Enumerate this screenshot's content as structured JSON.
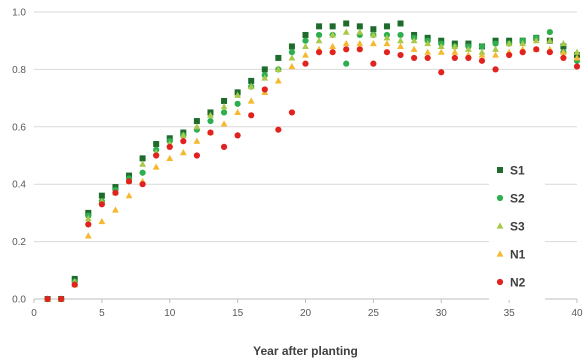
{
  "chart_data": {
    "type": "scatter",
    "title": "",
    "xlabel": "Year after planting",
    "ylabel": "",
    "xlim": [
      0,
      40
    ],
    "ylim": [
      0,
      1.0
    ],
    "xticks": [
      0,
      5,
      10,
      15,
      20,
      25,
      30,
      35,
      40
    ],
    "yticks": [
      "0.0",
      "0.2",
      "0.4",
      "0.6",
      "0.8",
      "1.0"
    ],
    "grid": "horizontal",
    "legend_placement": "right",
    "series": [
      {
        "name": "S1",
        "marker": "square",
        "color": "#1e6b2c",
        "x": [
          1,
          2,
          3,
          4,
          5,
          6,
          7,
          8,
          9,
          10,
          11,
          12,
          13,
          14,
          15,
          16,
          17,
          18,
          19,
          20,
          21,
          22,
          23,
          24,
          25,
          26,
          27,
          28,
          29,
          30,
          31,
          32,
          33,
          34,
          35,
          36,
          37,
          38,
          39,
          40
        ],
        "y": [
          0,
          0,
          0.07,
          0.3,
          0.36,
          0.39,
          0.43,
          0.49,
          0.54,
          0.56,
          0.58,
          0.62,
          0.65,
          0.69,
          0.72,
          0.76,
          0.8,
          0.84,
          0.88,
          0.92,
          0.95,
          0.95,
          0.96,
          0.95,
          0.94,
          0.95,
          0.96,
          0.92,
          0.91,
          0.9,
          0.89,
          0.89,
          0.88,
          0.9,
          0.9,
          0.9,
          0.91,
          0.9,
          0.88,
          0.85
        ]
      },
      {
        "name": "S2",
        "marker": "circle",
        "color": "#2eae4f",
        "x": [
          1,
          2,
          3,
          4,
          5,
          6,
          7,
          8,
          9,
          10,
          11,
          12,
          13,
          14,
          15,
          16,
          17,
          18,
          19,
          20,
          21,
          22,
          23,
          24,
          25,
          26,
          27,
          28,
          29,
          30,
          31,
          32,
          33,
          34,
          35,
          36,
          37,
          38,
          39,
          40
        ],
        "y": [
          0,
          0,
          0.06,
          0.29,
          0.34,
          0.38,
          0.42,
          0.44,
          0.52,
          0.55,
          0.57,
          0.59,
          0.62,
          0.65,
          0.68,
          0.74,
          0.78,
          0.8,
          0.86,
          0.9,
          0.92,
          0.92,
          0.82,
          0.92,
          0.92,
          0.92,
          0.92,
          0.91,
          0.9,
          0.89,
          0.88,
          0.88,
          0.88,
          0.89,
          0.89,
          0.9,
          0.91,
          0.93,
          0.86,
          0.83
        ]
      },
      {
        "name": "S3",
        "marker": "triangle",
        "color": "#a8c94a",
        "x": [
          1,
          2,
          3,
          4,
          5,
          6,
          7,
          8,
          9,
          10,
          11,
          12,
          13,
          14,
          15,
          16,
          17,
          18,
          19,
          20,
          21,
          22,
          23,
          24,
          25,
          26,
          27,
          28,
          29,
          30,
          31,
          32,
          33,
          34,
          35,
          36,
          37,
          38,
          39,
          40
        ],
        "y": [
          0,
          0,
          0.06,
          0.28,
          0.34,
          0.37,
          0.41,
          0.47,
          0.51,
          0.54,
          0.57,
          0.6,
          0.64,
          0.67,
          0.71,
          0.74,
          0.77,
          0.8,
          0.84,
          0.88,
          0.9,
          0.92,
          0.93,
          0.93,
          0.92,
          0.91,
          0.9,
          0.9,
          0.89,
          0.88,
          0.88,
          0.87,
          0.86,
          0.87,
          0.89,
          0.89,
          0.9,
          0.9,
          0.89,
          0.86
        ]
      },
      {
        "name": "N1",
        "marker": "triangle",
        "color": "#f5b82e",
        "x": [
          1,
          2,
          3,
          4,
          5,
          6,
          7,
          8,
          9,
          10,
          11,
          12,
          13,
          14,
          15,
          16,
          17,
          18,
          19,
          20,
          21,
          22,
          23,
          24,
          25,
          26,
          27,
          28,
          29,
          30,
          31,
          32,
          33,
          34,
          35,
          36,
          37,
          38,
          39,
          40
        ],
        "y": [
          0,
          0,
          0.05,
          0.22,
          0.27,
          0.31,
          0.36,
          0.41,
          0.46,
          0.49,
          0.51,
          0.55,
          0.58,
          0.61,
          0.65,
          0.69,
          0.72,
          0.76,
          0.81,
          0.85,
          0.87,
          0.88,
          0.89,
          0.89,
          0.89,
          0.89,
          0.88,
          0.87,
          0.86,
          0.86,
          0.86,
          0.85,
          0.85,
          0.85,
          0.86,
          0.87,
          0.87,
          0.87,
          0.86,
          0.84
        ]
      },
      {
        "name": "N2",
        "marker": "circle",
        "color": "#e0231f",
        "x": [
          1,
          2,
          3,
          4,
          5,
          6,
          7,
          8,
          9,
          10,
          11,
          12,
          13,
          14,
          15,
          16,
          17,
          18,
          19,
          20,
          21,
          22,
          23,
          24,
          25,
          26,
          27,
          28,
          29,
          30,
          31,
          32,
          33,
          34,
          35,
          36,
          37,
          38,
          39,
          40
        ],
        "y": [
          0,
          0,
          0.05,
          0.26,
          0.33,
          0.37,
          0.41,
          0.4,
          0.5,
          0.53,
          0.55,
          0.5,
          0.58,
          0.53,
          0.57,
          0.64,
          0.73,
          0.59,
          0.65,
          0.82,
          0.86,
          0.86,
          0.87,
          0.87,
          0.82,
          0.86,
          0.85,
          0.84,
          0.84,
          0.79,
          0.84,
          0.84,
          0.83,
          0.8,
          0.85,
          0.86,
          0.87,
          0.86,
          0.84,
          0.81
        ]
      }
    ]
  }
}
